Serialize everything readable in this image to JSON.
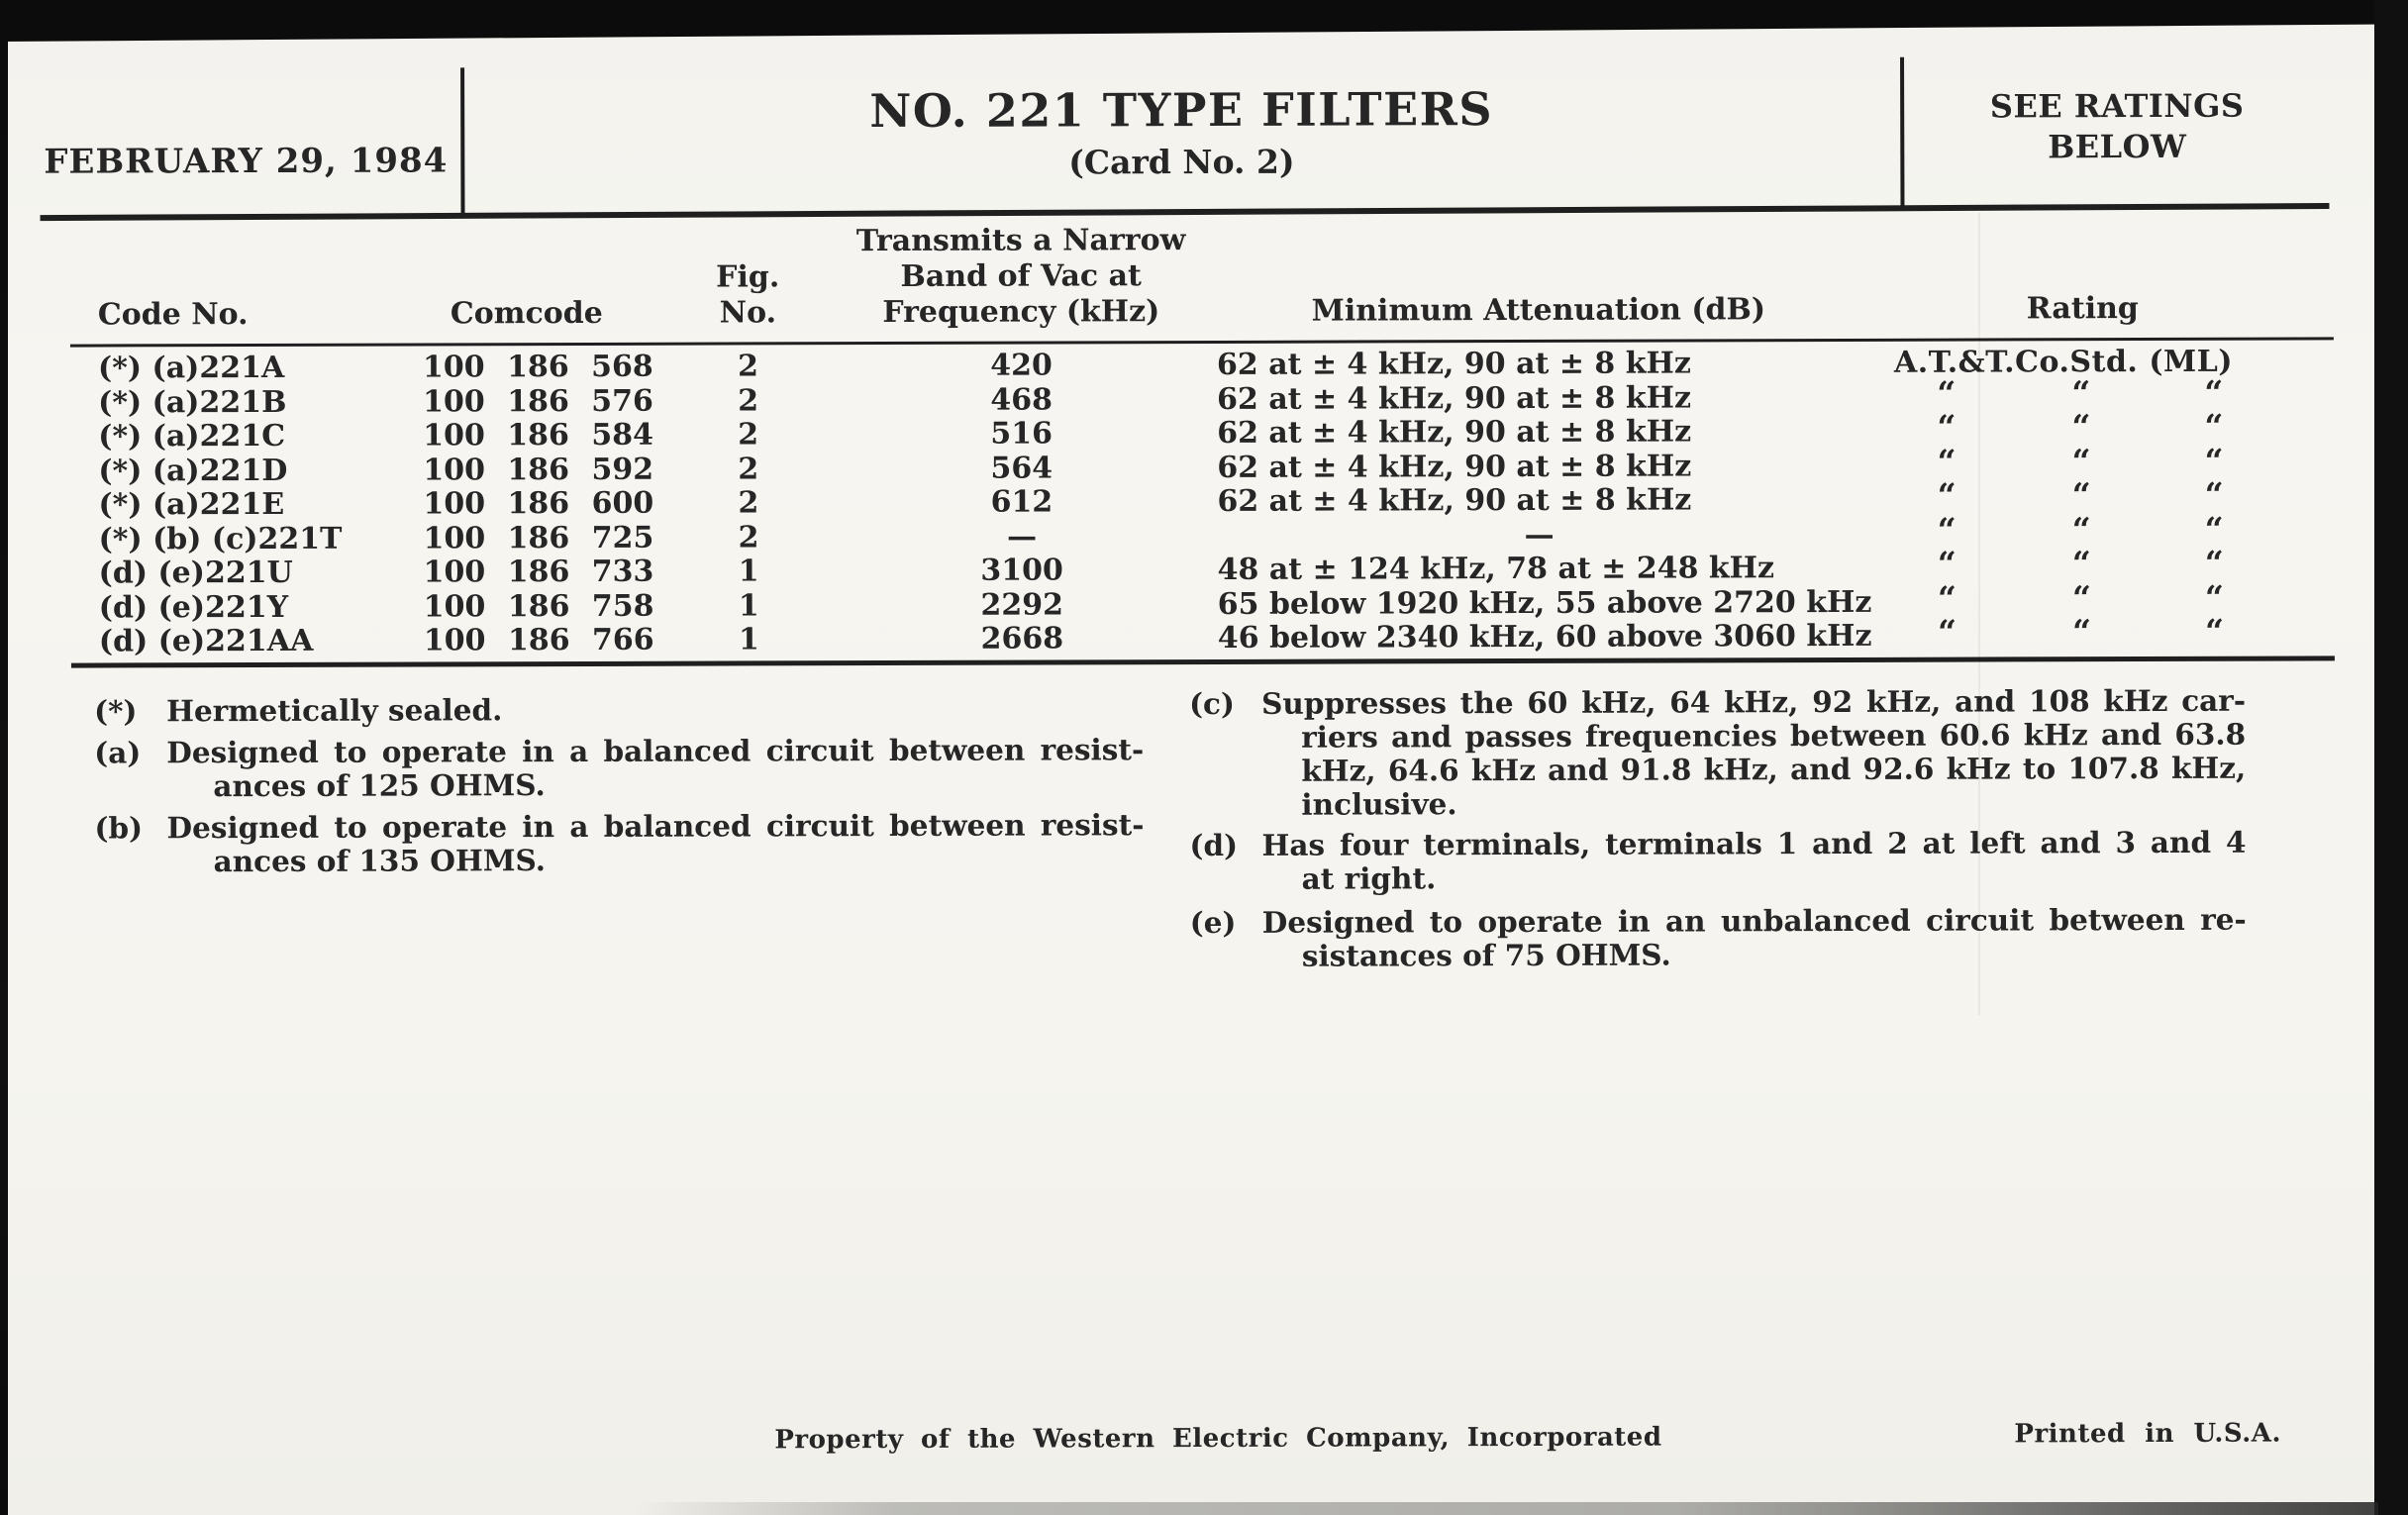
{
  "header": {
    "date": "FEBRUARY 29, 1984",
    "title": "NO. 221 TYPE FILTERS",
    "subtitle": "(Card No. 2)",
    "ratings_note": {
      "line1": "SEE RATINGS",
      "line2": "BELOW"
    }
  },
  "table": {
    "ditto_mark": "“",
    "headers": {
      "code": "Code No.",
      "comcode": "Comcode",
      "fig": [
        "Fig.",
        "No."
      ],
      "freq": [
        "Transmits a Narrow",
        "Band of Vac at",
        "Frequency (kHz)"
      ],
      "attenuation": "Minimum Attenuation (dB)",
      "rating": "Rating"
    },
    "rows": [
      {
        "code": "(*) (a)221A",
        "comcode": "100 186 568",
        "fig": "2",
        "freq": "420",
        "attenuation": "62 at ± 4 kHz, 90 at ± 8 kHz",
        "rating": "A.T.&T.Co.Std. (ML)"
      },
      {
        "code": "(*) (a)221B",
        "comcode": "100 186 576",
        "fig": "2",
        "freq": "468",
        "attenuation": "62 at ± 4 kHz, 90 at ± 8 kHz"
      },
      {
        "code": "(*) (a)221C",
        "comcode": "100 186 584",
        "fig": "2",
        "freq": "516",
        "attenuation": "62 at ± 4 kHz, 90 at ± 8 kHz"
      },
      {
        "code": "(*) (a)221D",
        "comcode": "100 186 592",
        "fig": "2",
        "freq": "564",
        "attenuation": "62 at ± 4 kHz, 90 at ± 8 kHz"
      },
      {
        "code": "(*) (a)221E",
        "comcode": "100 186 600",
        "fig": "2",
        "freq": "612",
        "attenuation": "62 at ± 4 kHz, 90 at ± 8 kHz"
      },
      {
        "code": "(*) (b) (c)221T",
        "comcode": "100 186 725",
        "fig": "2",
        "freq": "—",
        "attenuation": "—"
      },
      {
        "code": "(d) (e)221U",
        "comcode": "100 186 733",
        "fig": "1",
        "freq": "3100",
        "attenuation": "48 at ± 124 kHz, 78 at ± 248 kHz"
      },
      {
        "code": "(d) (e)221Y",
        "comcode": "100 186 758",
        "fig": "1",
        "freq": "2292",
        "attenuation": "65 below 1920 kHz, 55 above 2720 kHz"
      },
      {
        "code": "(d) (e)221AA",
        "comcode": "100 186 766",
        "fig": "1",
        "freq": "2668",
        "attenuation": "46 below 2340 kHz, 60 above 3060 kHz"
      }
    ]
  },
  "footnotes": {
    "left": [
      {
        "marker": "(*)",
        "lines": [
          "Hermetically sealed."
        ]
      },
      {
        "marker": "(a)",
        "lines": [
          "Designed to operate in a balanced circuit between resist-",
          "ances of 125 OHMS."
        ]
      },
      {
        "marker": "(b)",
        "lines": [
          "Designed to operate in a balanced circuit between resist-",
          "ances of 135 OHMS."
        ]
      }
    ],
    "right": [
      {
        "marker": "(c)",
        "lines": [
          "Suppresses the 60 kHz, 64 kHz, 92 kHz, and 108 kHz car-",
          "riers and passes frequencies between 60.6 kHz and 63.8",
          "kHz, 64.6 kHz and 91.8 kHz, and 92.6 kHz to 107.8 kHz,",
          "inclusive."
        ]
      },
      {
        "marker": "(d)",
        "lines": [
          "Has four terminals, terminals 1 and 2 at left and 3 and 4",
          "at right."
        ]
      },
      {
        "marker": "(e)",
        "lines": [
          "Designed to operate in an unbalanced circuit between re-",
          "sistances of 75 OHMS."
        ]
      }
    ]
  },
  "footer": {
    "property_line": "Property of the Western Electric Company, Incorporated",
    "printed_line": "Printed in U.S.A."
  }
}
